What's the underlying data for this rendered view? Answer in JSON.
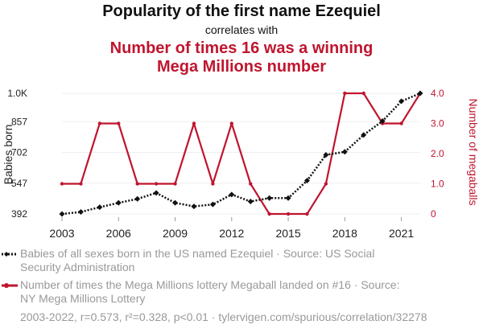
{
  "chart_data": {
    "type": "line",
    "title": "Popularity of the first name Ezequiel",
    "subtitle": "correlates with",
    "title2_lines": [
      "Number of times 16 was a winning",
      "Mega Millions number"
    ],
    "x": [
      2003,
      2004,
      2005,
      2006,
      2007,
      2008,
      2009,
      2010,
      2011,
      2012,
      2013,
      2014,
      2015,
      2016,
      2017,
      2018,
      2019,
      2020,
      2021,
      2022
    ],
    "x_ticks": [
      "2003",
      "2006",
      "2009",
      "2012",
      "2015",
      "2018",
      "2021"
    ],
    "xlim": [
      2003,
      2022
    ],
    "series": [
      {
        "name": "Babies of all sexes born in the US named Ezequiel",
        "axis": "left",
        "color": "#111111",
        "values": [
          392,
          402,
          426,
          448,
          468,
          498,
          448,
          430,
          440,
          490,
          455,
          472,
          472,
          560,
          690,
          705,
          790,
          860,
          960,
          1000
        ]
      },
      {
        "name": "Number of times the Mega Millions lottery Megaball landed on #16",
        "axis": "right",
        "color": "#c0152f",
        "values": [
          1,
          1,
          3,
          3,
          1,
          1,
          1,
          3,
          1,
          3,
          1,
          0,
          0,
          0,
          1,
          4,
          4,
          3,
          3,
          4
        ]
      }
    ],
    "y_left": {
      "label": "Babies born",
      "ticks": [
        "392",
        "547",
        "702",
        "857",
        "1.0K"
      ],
      "tick_values": [
        392,
        547,
        702,
        857,
        1000
      ],
      "lim": [
        392,
        1000
      ]
    },
    "y_right": {
      "label": "Number of megaballs",
      "ticks": [
        "0",
        "1.0",
        "2.0",
        "3.0",
        "4.0"
      ],
      "tick_values": [
        0,
        1,
        2,
        3,
        4
      ],
      "lim": [
        0,
        4
      ]
    },
    "legend": [
      {
        "lines": [
          "Babies of all sexes born in the US named Ezequiel · Source: US Social",
          "Security Administration"
        ],
        "color": "#111111",
        "style": "dotted"
      },
      {
        "lines": [
          "Number of times the Mega Millions lottery Megaball landed on #16 · Source:",
          "NY Mega Millions Lottery"
        ],
        "color": "#c0152f",
        "style": "solid"
      }
    ],
    "footer": "2003-2022, r=0.573, r²=0.328, p<0.01 · tylervigen.com/spurious/correlation/32278"
  }
}
